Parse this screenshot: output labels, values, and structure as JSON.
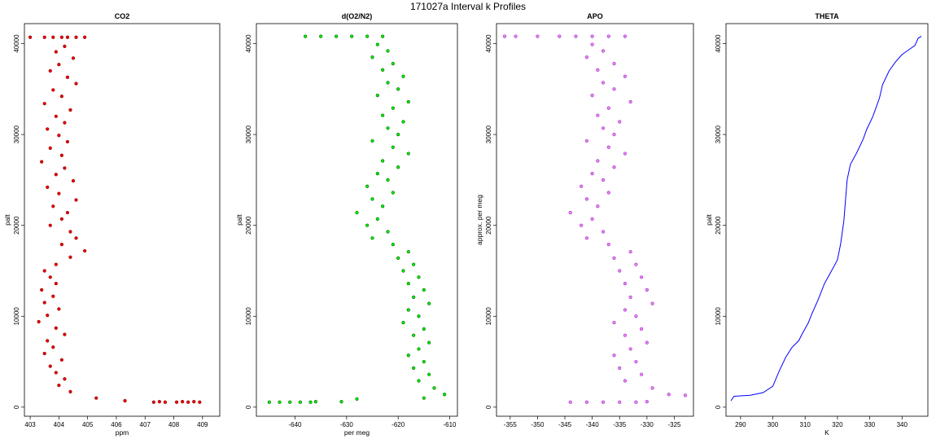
{
  "figure": {
    "title": "171027a   Interval k Profiles"
  },
  "chart_data": [
    {
      "type": "scatter",
      "title": "CO2",
      "xlabel": "ppm",
      "ylabel": "palt",
      "xlim": [
        402.8,
        409.6
      ],
      "ylim": [
        -1000,
        42200
      ],
      "xticks": [
        403,
        404,
        405,
        406,
        407,
        408,
        409
      ],
      "yticks": [
        0,
        10000,
        20000,
        30000,
        40000
      ],
      "color": "#ee0000",
      "edge_color": "#8b0000",
      "points": [
        [
          403.8,
          40700
        ],
        [
          404.1,
          40700
        ],
        [
          404.3,
          40700
        ],
        [
          404.6,
          40700
        ],
        [
          403.5,
          40700
        ],
        [
          404.9,
          40700
        ],
        [
          403.0,
          40700
        ],
        [
          404.2,
          39700
        ],
        [
          403.9,
          39100
        ],
        [
          404.5,
          38400
        ],
        [
          404.0,
          37700
        ],
        [
          403.7,
          37000
        ],
        [
          404.3,
          36300
        ],
        [
          404.6,
          35600
        ],
        [
          403.8,
          34900
        ],
        [
          404.1,
          34200
        ],
        [
          403.5,
          33400
        ],
        [
          404.4,
          32700
        ],
        [
          403.9,
          32000
        ],
        [
          404.2,
          31300
        ],
        [
          403.6,
          30600
        ],
        [
          404.0,
          29900
        ],
        [
          404.3,
          29200
        ],
        [
          403.7,
          28500
        ],
        [
          404.1,
          27700
        ],
        [
          403.4,
          27000
        ],
        [
          404.2,
          26300
        ],
        [
          403.9,
          25600
        ],
        [
          404.5,
          24900
        ],
        [
          403.6,
          24200
        ],
        [
          404.0,
          23500
        ],
        [
          404.6,
          22800
        ],
        [
          403.8,
          22100
        ],
        [
          404.3,
          21400
        ],
        [
          404.1,
          20700
        ],
        [
          403.7,
          20000
        ],
        [
          404.4,
          19300
        ],
        [
          404.6,
          18600
        ],
        [
          404.1,
          17900
        ],
        [
          404.9,
          17200
        ],
        [
          404.4,
          16500
        ],
        [
          403.9,
          15700
        ],
        [
          403.5,
          15000
        ],
        [
          403.7,
          14300
        ],
        [
          403.9,
          13600
        ],
        [
          403.4,
          12900
        ],
        [
          403.8,
          12200
        ],
        [
          403.5,
          11500
        ],
        [
          404.0,
          10800
        ],
        [
          403.6,
          10100
        ],
        [
          403.3,
          9400
        ],
        [
          403.9,
          8700
        ],
        [
          404.2,
          8000
        ],
        [
          403.6,
          7300
        ],
        [
          403.8,
          6600
        ],
        [
          403.5,
          5900
        ],
        [
          404.1,
          5200
        ],
        [
          403.7,
          4500
        ],
        [
          403.9,
          3800
        ],
        [
          404.2,
          3100
        ],
        [
          404.0,
          2400
        ],
        [
          404.4,
          1700
        ],
        [
          405.3,
          1000
        ],
        [
          406.3,
          700
        ],
        [
          407.3,
          550
        ],
        [
          407.7,
          550
        ],
        [
          408.1,
          550
        ],
        [
          408.5,
          550
        ],
        [
          408.9,
          550
        ],
        [
          407.5,
          600
        ],
        [
          408.3,
          600
        ],
        [
          408.7,
          600
        ]
      ]
    },
    {
      "type": "scatter",
      "title": "d(O2/N2)",
      "xlabel": "per meg",
      "ylabel": "palt",
      "xlim": [
        -647.5,
        -608.5
      ],
      "ylim": [
        -1000,
        42200
      ],
      "xticks": [
        -640,
        -630,
        -620,
        -610
      ],
      "yticks": [
        0,
        10000,
        20000,
        30000,
        40000
      ],
      "color": "#00ee00",
      "edge_color": "#006400",
      "points": [
        [
          -638,
          40800
        ],
        [
          -635,
          40800
        ],
        [
          -632,
          40800
        ],
        [
          -629,
          40800
        ],
        [
          -626,
          40800
        ],
        [
          -623,
          40800
        ],
        [
          -624,
          39900
        ],
        [
          -622,
          39200
        ],
        [
          -625,
          38500
        ],
        [
          -621,
          37800
        ],
        [
          -623,
          37100
        ],
        [
          -619,
          36400
        ],
        [
          -622,
          35700
        ],
        [
          -620,
          35000
        ],
        [
          -624,
          34300
        ],
        [
          -618,
          33600
        ],
        [
          -621,
          32900
        ],
        [
          -623,
          32100
        ],
        [
          -619,
          31400
        ],
        [
          -622,
          30700
        ],
        [
          -620,
          30000
        ],
        [
          -625,
          29300
        ],
        [
          -621,
          28600
        ],
        [
          -618,
          27900
        ],
        [
          -623,
          27100
        ],
        [
          -620,
          26400
        ],
        [
          -624,
          25700
        ],
        [
          -622,
          25000
        ],
        [
          -626,
          24300
        ],
        [
          -621,
          23600
        ],
        [
          -625,
          22900
        ],
        [
          -623,
          22100
        ],
        [
          -628,
          21400
        ],
        [
          -624,
          20700
        ],
        [
          -626,
          20000
        ],
        [
          -622,
          19300
        ],
        [
          -625,
          18600
        ],
        [
          -621,
          17900
        ],
        [
          -618,
          17100
        ],
        [
          -620,
          16400
        ],
        [
          -617,
          15700
        ],
        [
          -619,
          15000
        ],
        [
          -616,
          14300
        ],
        [
          -618,
          13600
        ],
        [
          -615,
          12900
        ],
        [
          -617,
          12100
        ],
        [
          -614,
          11400
        ],
        [
          -618,
          10700
        ],
        [
          -616,
          10000
        ],
        [
          -619,
          9300
        ],
        [
          -615,
          8600
        ],
        [
          -617,
          7900
        ],
        [
          -614,
          7100
        ],
        [
          -616,
          6400
        ],
        [
          -618,
          5700
        ],
        [
          -615,
          5000
        ],
        [
          -617,
          4300
        ],
        [
          -614,
          3600
        ],
        [
          -616,
          2900
        ],
        [
          -613,
          2100
        ],
        [
          -611,
          1400
        ],
        [
          -615,
          1000
        ],
        [
          -641,
          550
        ],
        [
          -643,
          550
        ],
        [
          -645,
          550
        ],
        [
          -639,
          550
        ],
        [
          -637,
          550
        ],
        [
          -636,
          600
        ],
        [
          -631,
          600
        ],
        [
          -628,
          900
        ]
      ]
    },
    {
      "type": "scatter",
      "title": "APO",
      "xlabel": "",
      "ylabel": "approx. per meg",
      "xlim": [
        -357.5,
        -321.5
      ],
      "ylim": [
        -1000,
        42200
      ],
      "xticks": [
        -355,
        -350,
        -345,
        -340,
        -335,
        -330,
        -325
      ],
      "yticks": [
        0,
        10000,
        20000,
        30000,
        40000
      ],
      "color": "#ee82ee",
      "edge_color": "#9932cc",
      "points": [
        [
          -356,
          40800
        ],
        [
          -354,
          40800
        ],
        [
          -350,
          40800
        ],
        [
          -346,
          40800
        ],
        [
          -343,
          40800
        ],
        [
          -340,
          40800
        ],
        [
          -337,
          40800
        ],
        [
          -334,
          40800
        ],
        [
          -340,
          39900
        ],
        [
          -338,
          39200
        ],
        [
          -341,
          38500
        ],
        [
          -336,
          37800
        ],
        [
          -339,
          37100
        ],
        [
          -334,
          36400
        ],
        [
          -338,
          35700
        ],
        [
          -336,
          35000
        ],
        [
          -340,
          34300
        ],
        [
          -333,
          33600
        ],
        [
          -337,
          32900
        ],
        [
          -339,
          32100
        ],
        [
          -335,
          31400
        ],
        [
          -338,
          30700
        ],
        [
          -336,
          30000
        ],
        [
          -341,
          29300
        ],
        [
          -337,
          28600
        ],
        [
          -334,
          27900
        ],
        [
          -339,
          27100
        ],
        [
          -336,
          26400
        ],
        [
          -340,
          25700
        ],
        [
          -338,
          25000
        ],
        [
          -342,
          24300
        ],
        [
          -337,
          23600
        ],
        [
          -341,
          22900
        ],
        [
          -339,
          22100
        ],
        [
          -344,
          21400
        ],
        [
          -340,
          20700
        ],
        [
          -342,
          20000
        ],
        [
          -338,
          19300
        ],
        [
          -341,
          18600
        ],
        [
          -337,
          17900
        ],
        [
          -333,
          17100
        ],
        [
          -336,
          16400
        ],
        [
          -332,
          15700
        ],
        [
          -335,
          15000
        ],
        [
          -331,
          14300
        ],
        [
          -334,
          13600
        ],
        [
          -330,
          12900
        ],
        [
          -333,
          12100
        ],
        [
          -329,
          11400
        ],
        [
          -334,
          10700
        ],
        [
          -332,
          10000
        ],
        [
          -336,
          9300
        ],
        [
          -331,
          8600
        ],
        [
          -334,
          7900
        ],
        [
          -330,
          7100
        ],
        [
          -333,
          6400
        ],
        [
          -336,
          5700
        ],
        [
          -332,
          5000
        ],
        [
          -335,
          4300
        ],
        [
          -331,
          3600
        ],
        [
          -334,
          2900
        ],
        [
          -329,
          2100
        ],
        [
          -326,
          1400
        ],
        [
          -323,
          1300
        ],
        [
          -344,
          550
        ],
        [
          -341,
          550
        ],
        [
          -338,
          550
        ],
        [
          -335,
          550
        ],
        [
          -332,
          550
        ],
        [
          -330,
          600
        ]
      ]
    },
    {
      "type": "line",
      "title": "THETA",
      "xlabel": "K",
      "ylabel": "palt",
      "xlim": [
        285.5,
        348.0
      ],
      "ylim": [
        -1000,
        42200
      ],
      "xticks": [
        290,
        300,
        310,
        320,
        330,
        340
      ],
      "yticks": [
        0,
        10000,
        20000,
        30000,
        40000
      ],
      "color": "#0000ff",
      "x": [
        287,
        288,
        293,
        297,
        300,
        302,
        304,
        306,
        308,
        309,
        311,
        312,
        314,
        316,
        318,
        320,
        321,
        322,
        323,
        324,
        326,
        328,
        329,
        331,
        333,
        334,
        336,
        338,
        340,
        342,
        344,
        345,
        346
      ],
      "y": [
        700,
        1200,
        1300,
        1600,
        2300,
        4000,
        5500,
        6600,
        7300,
        8000,
        9300,
        10200,
        11800,
        13600,
        14900,
        16200,
        18000,
        20500,
        25000,
        26700,
        28000,
        29500,
        30500,
        32000,
        34000,
        35500,
        37000,
        38000,
        38800,
        39300,
        39800,
        40600,
        40800
      ]
    }
  ]
}
